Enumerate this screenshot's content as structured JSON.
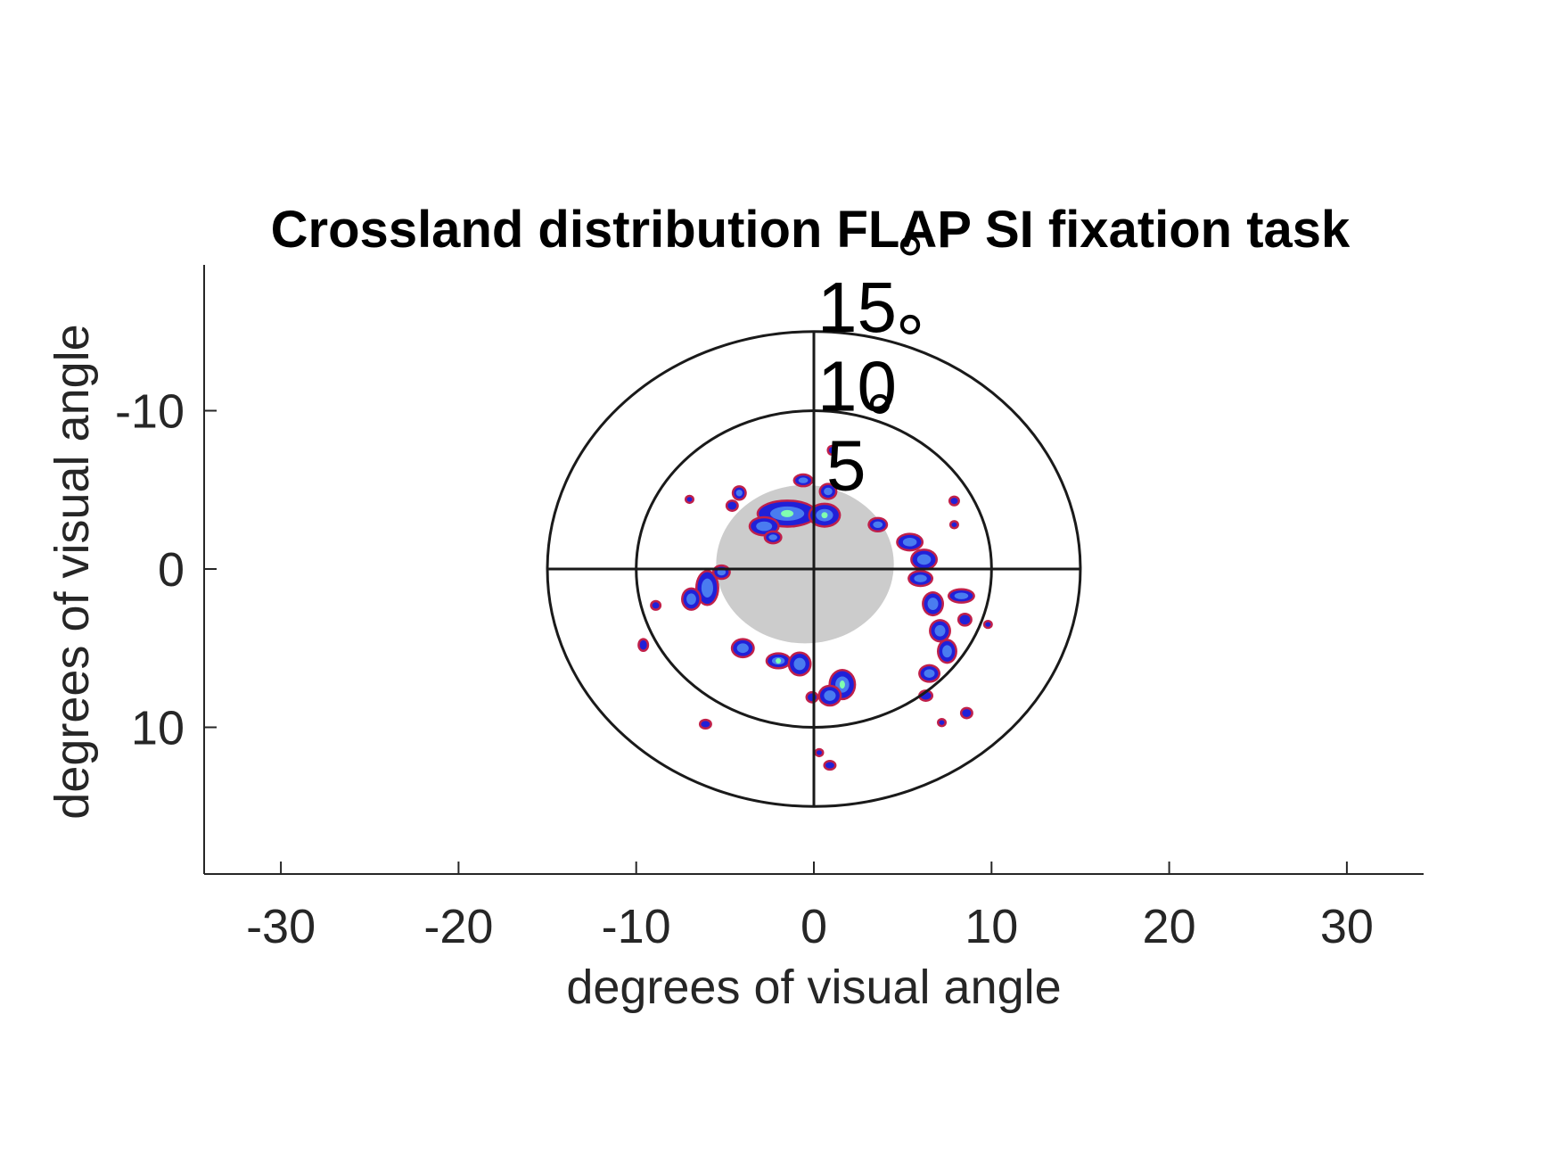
{
  "chart_data": {
    "type": "heatmap",
    "title": "Crossland distribution FLAP SI fixation task",
    "xlabel": "degrees of visual angle",
    "ylabel": "degrees of visual angle",
    "xlim": [
      -34.5,
      34.5
    ],
    "ylim": [
      19,
      -19
    ],
    "y_axis_reversed": true,
    "x_ticks": [
      -30,
      -20,
      -10,
      0,
      10,
      20,
      30
    ],
    "x_tick_labels": [
      "-30",
      "-20",
      "-10",
      "0",
      "10",
      "20",
      "30"
    ],
    "y_ticks": [
      -10,
      0,
      10
    ],
    "y_tick_labels": [
      "-10",
      "0",
      "10"
    ],
    "rings": [
      15,
      10
    ],
    "ring_labels": [
      {
        "text": "15",
        "deg": "°",
        "x": 0.2,
        "y": -15
      },
      {
        "text": "10",
        "deg": "°",
        "x": 0.2,
        "y": -10
      },
      {
        "text": "5",
        "deg": "°",
        "x": 0.7,
        "y": -5
      }
    ],
    "scotoma": {
      "cx": -0.5,
      "cy": -0.3,
      "rx": 5,
      "ry": 5,
      "color": "#cccccc"
    },
    "colors": {
      "ring": "#1a1a1a",
      "axis": "#262626",
      "low": "#2020d8",
      "mid": "#4a7cf0",
      "high": "#80ffb0",
      "edge": "#c0204a"
    },
    "clusters": [
      {
        "x": -1.5,
        "y": -3.5,
        "w": 3.2,
        "h": 1.5,
        "i": 0.7
      },
      {
        "x": 0.6,
        "y": -3.4,
        "w": 1.6,
        "h": 1.3,
        "i": 0.85
      },
      {
        "x": -2.8,
        "y": -2.7,
        "w": 1.5,
        "h": 1.0,
        "i": 0.4
      },
      {
        "x": -0.6,
        "y": -5.6,
        "w": 0.9,
        "h": 0.6,
        "i": 0.3
      },
      {
        "x": 0.8,
        "y": -4.9,
        "w": 0.8,
        "h": 0.8,
        "i": 0.4
      },
      {
        "x": -4.2,
        "y": -4.8,
        "w": 0.6,
        "h": 0.7,
        "i": 0.3
      },
      {
        "x": -4.6,
        "y": -4.0,
        "w": 0.5,
        "h": 0.5,
        "i": 0.2
      },
      {
        "x": 3.6,
        "y": -2.8,
        "w": 0.9,
        "h": 0.7,
        "i": 0.3
      },
      {
        "x": 5.4,
        "y": -1.7,
        "w": 1.3,
        "h": 0.9,
        "i": 0.35
      },
      {
        "x": 6.2,
        "y": -0.6,
        "w": 1.3,
        "h": 1.1,
        "i": 0.4
      },
      {
        "x": 6.0,
        "y": 0.6,
        "w": 1.2,
        "h": 0.8,
        "i": 0.35
      },
      {
        "x": 6.7,
        "y": 2.2,
        "w": 1.0,
        "h": 1.3,
        "i": 0.45
      },
      {
        "x": 8.3,
        "y": 1.7,
        "w": 1.3,
        "h": 0.7,
        "i": 0.35
      },
      {
        "x": 7.1,
        "y": 3.9,
        "w": 1.0,
        "h": 1.2,
        "i": 0.4
      },
      {
        "x": 7.5,
        "y": 5.2,
        "w": 0.9,
        "h": 1.3,
        "i": 0.45
      },
      {
        "x": 6.5,
        "y": 6.6,
        "w": 1.0,
        "h": 0.9,
        "i": 0.35
      },
      {
        "x": 8.5,
        "y": 3.2,
        "w": 0.6,
        "h": 0.6,
        "i": 0.25
      },
      {
        "x": 8.6,
        "y": 9.1,
        "w": 0.5,
        "h": 0.5,
        "i": 0.2
      },
      {
        "x": 6.3,
        "y": 8.0,
        "w": 0.6,
        "h": 0.5,
        "i": 0.2
      },
      {
        "x": -6.0,
        "y": 1.2,
        "w": 1.1,
        "h": 2.0,
        "i": 0.4
      },
      {
        "x": -6.9,
        "y": 1.9,
        "w": 0.9,
        "h": 1.2,
        "i": 0.35
      },
      {
        "x": -5.2,
        "y": 0.2,
        "w": 0.8,
        "h": 0.7,
        "i": 0.3
      },
      {
        "x": -8.9,
        "y": 2.3,
        "w": 0.4,
        "h": 0.4,
        "i": 0.2
      },
      {
        "x": -4.0,
        "y": 5.0,
        "w": 1.1,
        "h": 1.0,
        "i": 0.35
      },
      {
        "x": -2.0,
        "y": 5.8,
        "w": 1.2,
        "h": 0.8,
        "i": 0.6
      },
      {
        "x": -0.8,
        "y": 6.0,
        "w": 1.1,
        "h": 1.3,
        "i": 0.5
      },
      {
        "x": 1.6,
        "y": 7.3,
        "w": 1.3,
        "h": 1.7,
        "i": 0.6
      },
      {
        "x": 0.9,
        "y": 8.0,
        "w": 1.1,
        "h": 1.1,
        "i": 0.4
      },
      {
        "x": -0.1,
        "y": 8.1,
        "w": 0.5,
        "h": 0.5,
        "i": 0.2
      },
      {
        "x": -9.6,
        "y": 4.8,
        "w": 0.4,
        "h": 0.6,
        "i": 0.2
      },
      {
        "x": -6.1,
        "y": 9.8,
        "w": 0.5,
        "h": 0.4,
        "i": 0.2
      },
      {
        "x": 0.9,
        "y": 12.4,
        "w": 0.5,
        "h": 0.4,
        "i": 0.2
      },
      {
        "x": 0.3,
        "y": 11.6,
        "w": 0.3,
        "h": 0.3,
        "i": 0.15
      },
      {
        "x": 7.2,
        "y": 9.7,
        "w": 0.3,
        "h": 0.3,
        "i": 0.15
      },
      {
        "x": 7.9,
        "y": -4.3,
        "w": 0.4,
        "h": 0.4,
        "i": 0.2
      },
      {
        "x": 7.9,
        "y": -2.8,
        "w": 0.3,
        "h": 0.3,
        "i": 0.15
      },
      {
        "x": -7.0,
        "y": -4.4,
        "w": 0.3,
        "h": 0.3,
        "i": 0.15
      },
      {
        "x": 1.0,
        "y": -7.5,
        "w": 0.3,
        "h": 0.4,
        "i": 0.15
      },
      {
        "x": -2.3,
        "y": -2.0,
        "w": 0.8,
        "h": 0.6,
        "i": 0.3
      },
      {
        "x": 9.8,
        "y": 3.5,
        "w": 0.3,
        "h": 0.3,
        "i": 0.15
      }
    ]
  }
}
